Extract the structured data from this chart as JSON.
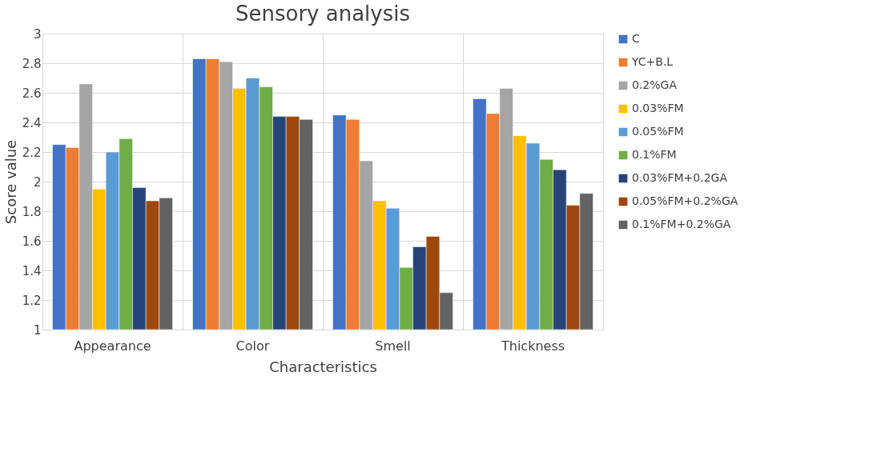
{
  "chart_data": {
    "type": "bar",
    "title": "Sensory analysis",
    "xlabel": "Characteristics",
    "ylabel": "Score value",
    "categories": [
      "Appearance",
      "Color",
      "Smell",
      "Thickness"
    ],
    "series": [
      {
        "name": "C",
        "color": "#4472c4",
        "values": [
          2.25,
          2.83,
          2.45,
          2.56
        ]
      },
      {
        "name": "YC+B.L",
        "color": "#ed7d31",
        "values": [
          2.23,
          2.83,
          2.42,
          2.46
        ]
      },
      {
        "name": "0.2%GA",
        "color": "#a5a5a5",
        "values": [
          2.66,
          2.81,
          2.14,
          2.63
        ]
      },
      {
        "name": "0.03%FM",
        "color": "#ffc000",
        "values": [
          1.95,
          2.63,
          1.87,
          2.31
        ]
      },
      {
        "name": "0.05%FM",
        "color": "#5b9bd5",
        "values": [
          2.2,
          2.7,
          1.82,
          2.26
        ]
      },
      {
        "name": "0.1%FM",
        "color": "#70ad47",
        "values": [
          2.29,
          2.64,
          1.42,
          2.15
        ]
      },
      {
        "name": "0.03%FM+0.2GA",
        "color": "#264478",
        "values": [
          1.96,
          2.44,
          1.56,
          2.08
        ]
      },
      {
        "name": "0.05%FM+0.2%GA",
        "color": "#9e480e",
        "values": [
          1.87,
          2.44,
          1.63,
          1.84
        ]
      },
      {
        "name": "0.1%FM+0.2%GA",
        "color": "#636363",
        "values": [
          1.89,
          2.42,
          1.25,
          1.92
        ]
      }
    ],
    "ylim": [
      1,
      3
    ],
    "yticks": [
      1,
      1.2,
      1.4,
      1.6,
      1.8,
      2,
      2.2,
      2.4,
      2.6,
      2.8,
      3
    ],
    "grid": true,
    "legend": "right"
  }
}
